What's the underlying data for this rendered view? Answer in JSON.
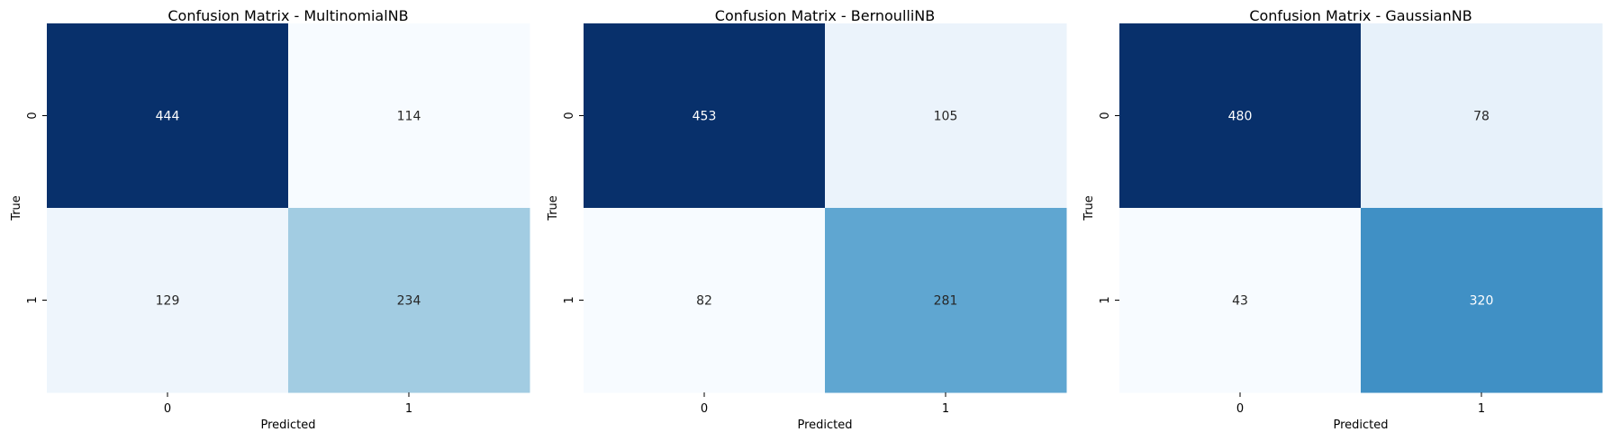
{
  "chart_data": [
    {
      "type": "heatmap",
      "title": "Confusion Matrix - MultinomialNB",
      "xlabel": "Predicted",
      "ylabel": "True",
      "x_categories": [
        "0",
        "1"
      ],
      "y_categories": [
        "0",
        "1"
      ],
      "values": [
        [
          444,
          114
        ],
        [
          129,
          234
        ]
      ],
      "colormap": "Blues",
      "colorbar": false
    },
    {
      "type": "heatmap",
      "title": "Confusion Matrix - BernoulliNB",
      "xlabel": "Predicted",
      "ylabel": "True",
      "x_categories": [
        "0",
        "1"
      ],
      "y_categories": [
        "0",
        "1"
      ],
      "values": [
        [
          453,
          105
        ],
        [
          82,
          281
        ]
      ],
      "colormap": "Blues",
      "colorbar": false
    },
    {
      "type": "heatmap",
      "title": "Confusion Matrix - GaussianNB",
      "xlabel": "Predicted",
      "ylabel": "True",
      "x_categories": [
        "0",
        "1"
      ],
      "y_categories": [
        "0",
        "1"
      ],
      "values": [
        [
          480,
          78
        ],
        [
          43,
          320
        ]
      ],
      "colormap": "Blues",
      "colorbar": false
    }
  ]
}
